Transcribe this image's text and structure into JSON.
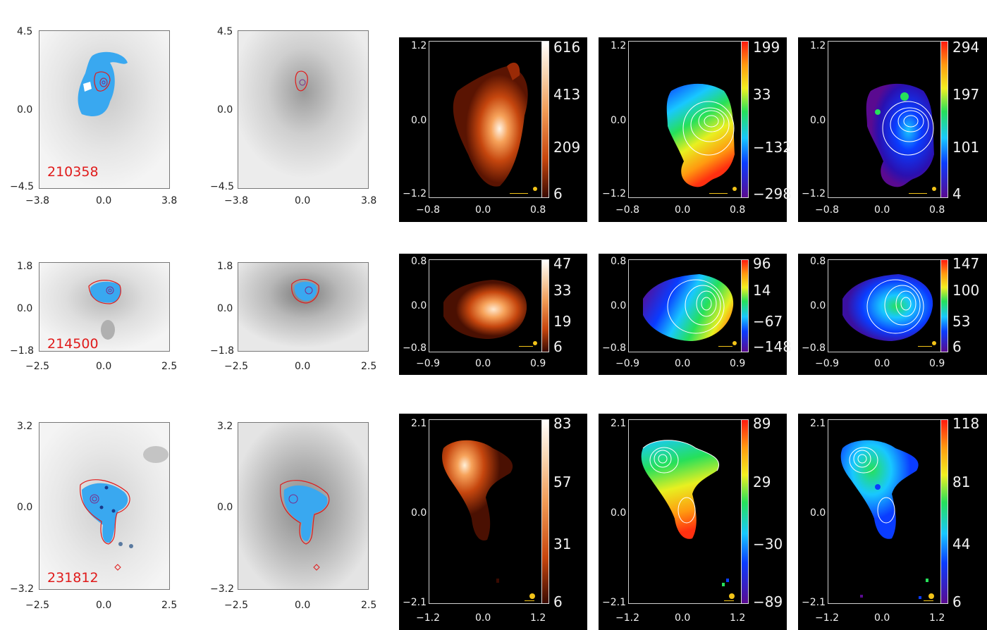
{
  "figure": {
    "rows": [
      {
        "id": "210358",
        "hst": {
          "x_ticks": [
            "−3.8",
            "0.0",
            "3.8"
          ],
          "y_ticks": [
            "4.5",
            "0.0",
            "−4.5"
          ]
        },
        "cont": {
          "x_ticks": [
            "−3.8",
            "0.0",
            "3.8"
          ],
          "y_ticks": [
            "4.5",
            "0.0",
            "−4.5"
          ]
        },
        "kin_x_ticks": [
          "−0.8",
          "0.0",
          "0.8"
        ],
        "kin_y_ticks": [
          "1.2",
          "0.0",
          "−1.2"
        ],
        "flux_cbar": [
          "616",
          "413",
          "209",
          "6"
        ],
        "vel_cbar": [
          "199",
          "33",
          "−132",
          "−298"
        ],
        "sigma_cbar": [
          "294",
          "197",
          "101",
          "4"
        ]
      },
      {
        "id": "214500",
        "hst": {
          "x_ticks": [
            "−2.5",
            "0.0",
            "2.5"
          ],
          "y_ticks": [
            "1.8",
            "0.0",
            "−1.8"
          ]
        },
        "cont": {
          "x_ticks": [
            "−2.5",
            "0.0",
            "2.5"
          ],
          "y_ticks": [
            "1.8",
            "0.0",
            "−1.8"
          ]
        },
        "kin_x_ticks": [
          "−0.9",
          "0.0",
          "0.9"
        ],
        "kin_y_ticks": [
          "0.8",
          "0.0",
          "−0.8"
        ],
        "flux_cbar": [
          "47",
          "33",
          "19",
          "6"
        ],
        "vel_cbar": [
          "96",
          "14",
          "−67",
          "−148"
        ],
        "sigma_cbar": [
          "147",
          "100",
          "53",
          "6"
        ]
      },
      {
        "id": "231812",
        "hst": {
          "x_ticks": [
            "−2.5",
            "0.0",
            "2.5"
          ],
          "y_ticks": [
            "3.2",
            "0.0",
            "−3.2"
          ]
        },
        "cont": {
          "x_ticks": [
            "−2.5",
            "0.0",
            "2.5"
          ],
          "y_ticks": [
            "3.2",
            "0.0",
            "−3.2"
          ]
        },
        "kin_x_ticks": [
          "−1.2",
          "0.0",
          "1.2"
        ],
        "kin_y_ticks": [
          "2.1",
          "0.0",
          "−2.1"
        ],
        "flux_cbar": [
          "83",
          "57",
          "31",
          "6"
        ],
        "vel_cbar": [
          "89",
          "29",
          "−30",
          "−89"
        ],
        "sigma_cbar": [
          "118",
          "81",
          "44",
          "6"
        ]
      }
    ]
  },
  "colors": {
    "label_red": "#e01b1b",
    "highlight_blue": "#39a8f0",
    "contour_red": "#e01b1b",
    "scalebar_yellow": "#f2c318"
  }
}
